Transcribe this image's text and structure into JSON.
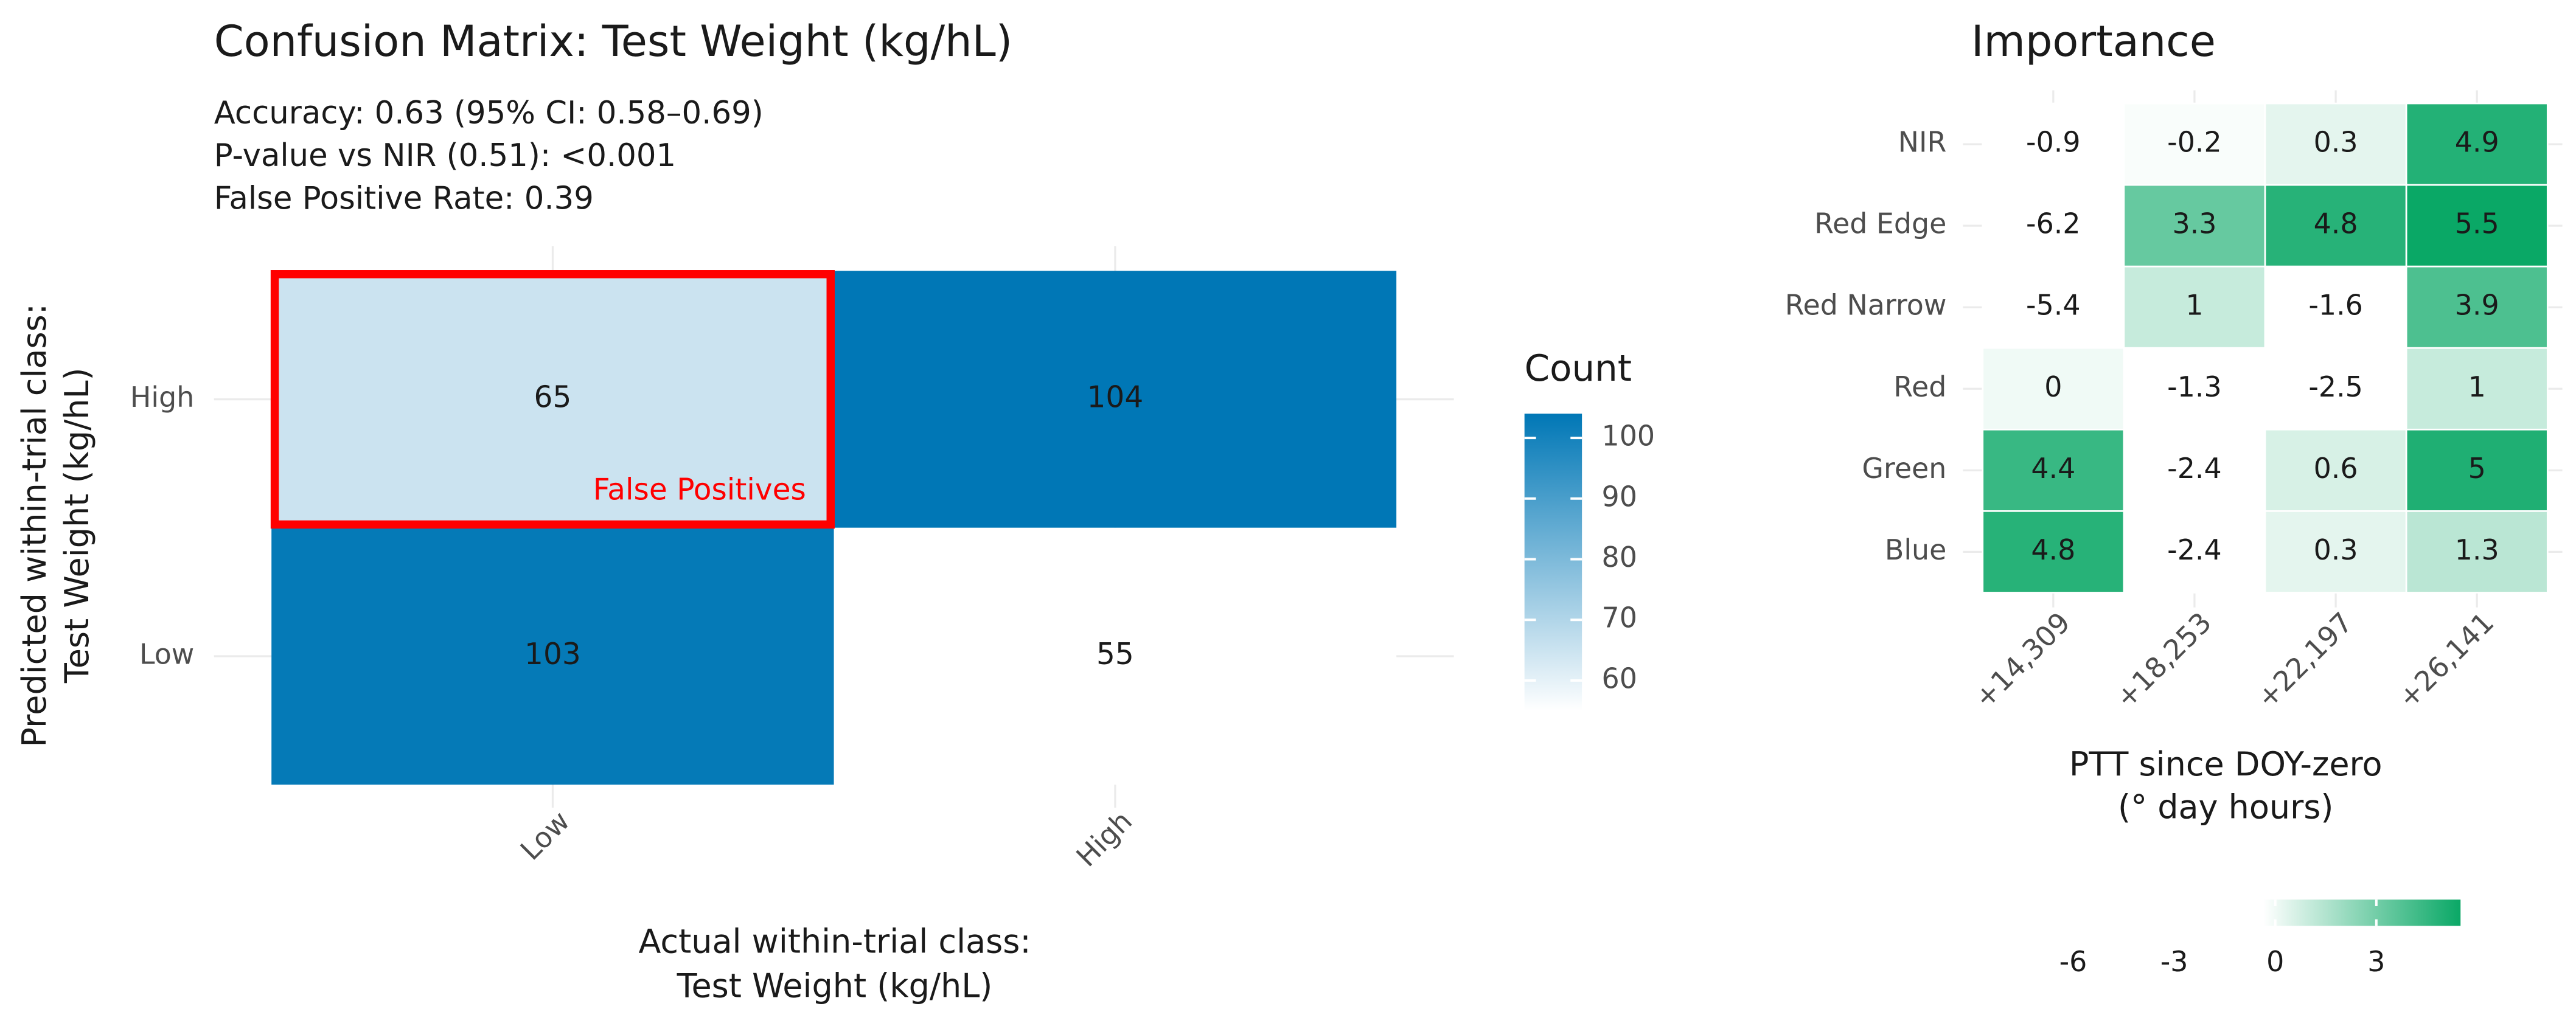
{
  "chart_data": [
    {
      "type": "heatmap",
      "title": "Confusion Matrix: Test Weight (kg/hL)",
      "subtitle": [
        "Accuracy: 0.63 (95% CI: 0.58–0.69)",
        "P-value vs NIR (0.51): <0.001",
        "False Positive Rate: 0.39"
      ],
      "x_label": [
        "Actual within-trial class:",
        "Test Weight (kg/hL)"
      ],
      "y_label": [
        "Predicted within-trial class:",
        "Test Weight (kg/hL)"
      ],
      "x_categories": [
        "Low",
        "High"
      ],
      "y_categories": [
        "High",
        "Low"
      ],
      "values": [
        [
          65,
          104
        ],
        [
          103,
          55
        ]
      ],
      "colorbar": {
        "title": "Count",
        "lim": [
          55,
          104
        ],
        "ticks": [
          60,
          70,
          80,
          90,
          100
        ],
        "colors": [
          "#ffffff",
          "#0077b6"
        ]
      },
      "annotation": {
        "text": "False Positives",
        "x": "Low",
        "y": "High",
        "color": "#ff0000"
      },
      "grid": true
    },
    {
      "type": "heatmap",
      "title": "Importance",
      "x_label": [
        "PTT since DOY-zero",
        "(° day hours)"
      ],
      "x_categories": [
        "+14,309",
        "+18,253",
        "+22,197",
        "+26,141"
      ],
      "y_categories": [
        "NIR",
        "Red Edge",
        "Red Narrow",
        "Red",
        "Green",
        "Blue"
      ],
      "values": [
        [
          -0.9,
          -0.2,
          0.3,
          4.9
        ],
        [
          -6.2,
          3.3,
          4.8,
          5.5
        ],
        [
          -5.4,
          1,
          -1.6,
          3.9
        ],
        [
          0,
          -1.3,
          -2.5,
          1
        ],
        [
          4.4,
          -2.4,
          0.6,
          5
        ],
        [
          4.8,
          -2.4,
          0.3,
          1.3
        ]
      ],
      "colorbar": {
        "lim": [
          -6.2,
          5.5
        ],
        "ticks": [
          -6,
          -3,
          0,
          3
        ],
        "colors": [
          "#ffffff",
          "#ffffff",
          "#0aa866"
        ]
      },
      "grid": true
    }
  ]
}
